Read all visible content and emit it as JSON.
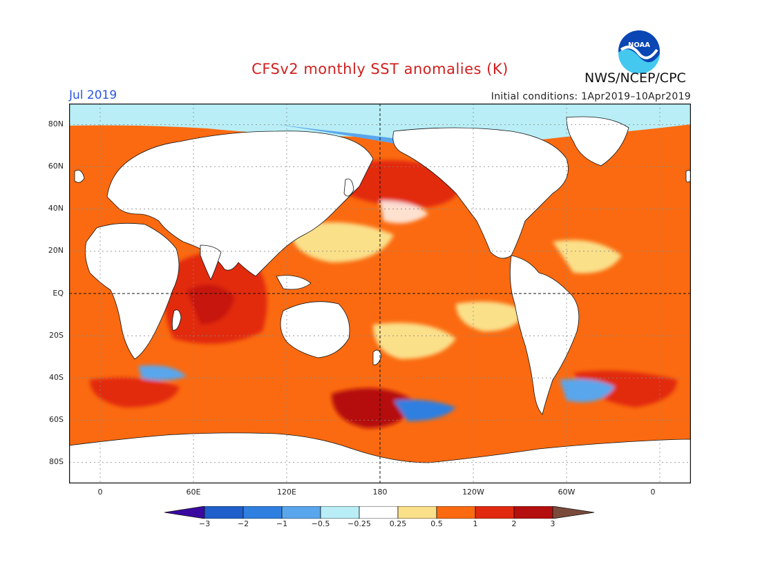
{
  "title": "CFSv2 monthly SST anomalies (K)",
  "agency": "NWS/NCEP/CPC",
  "logo_text": "NOAA",
  "month_label": "Jul 2019",
  "initial_conditions": "Initial conditions: 1Apr2019–10Apr2019",
  "map": {
    "projection": "equirectangular",
    "lon_range": [
      -20,
      380
    ],
    "lat_range": [
      -90,
      90
    ],
    "grid": "dashed",
    "lat_labels": [
      "80N",
      "60N",
      "40N",
      "20N",
      "EQ",
      "20S",
      "40S",
      "60S",
      "80S"
    ],
    "lon_labels": [
      "0",
      "60E",
      "120E",
      "180",
      "120W",
      "60W",
      "0"
    ]
  },
  "colorbar": {
    "labels": [
      "−3",
      "−2",
      "−1",
      "−0.5",
      "−0.25",
      "0.25",
      "0.5",
      "1",
      "2",
      "3"
    ],
    "colors": [
      "#3a0aa0",
      "#1f5fcc",
      "#2f7fe0",
      "#5aa6ec",
      "#b9eef6",
      "#ffffff",
      "#fbe08a",
      "#fb6a10",
      "#e22a10",
      "#b50e0e",
      "#7a4a3a"
    ]
  }
}
